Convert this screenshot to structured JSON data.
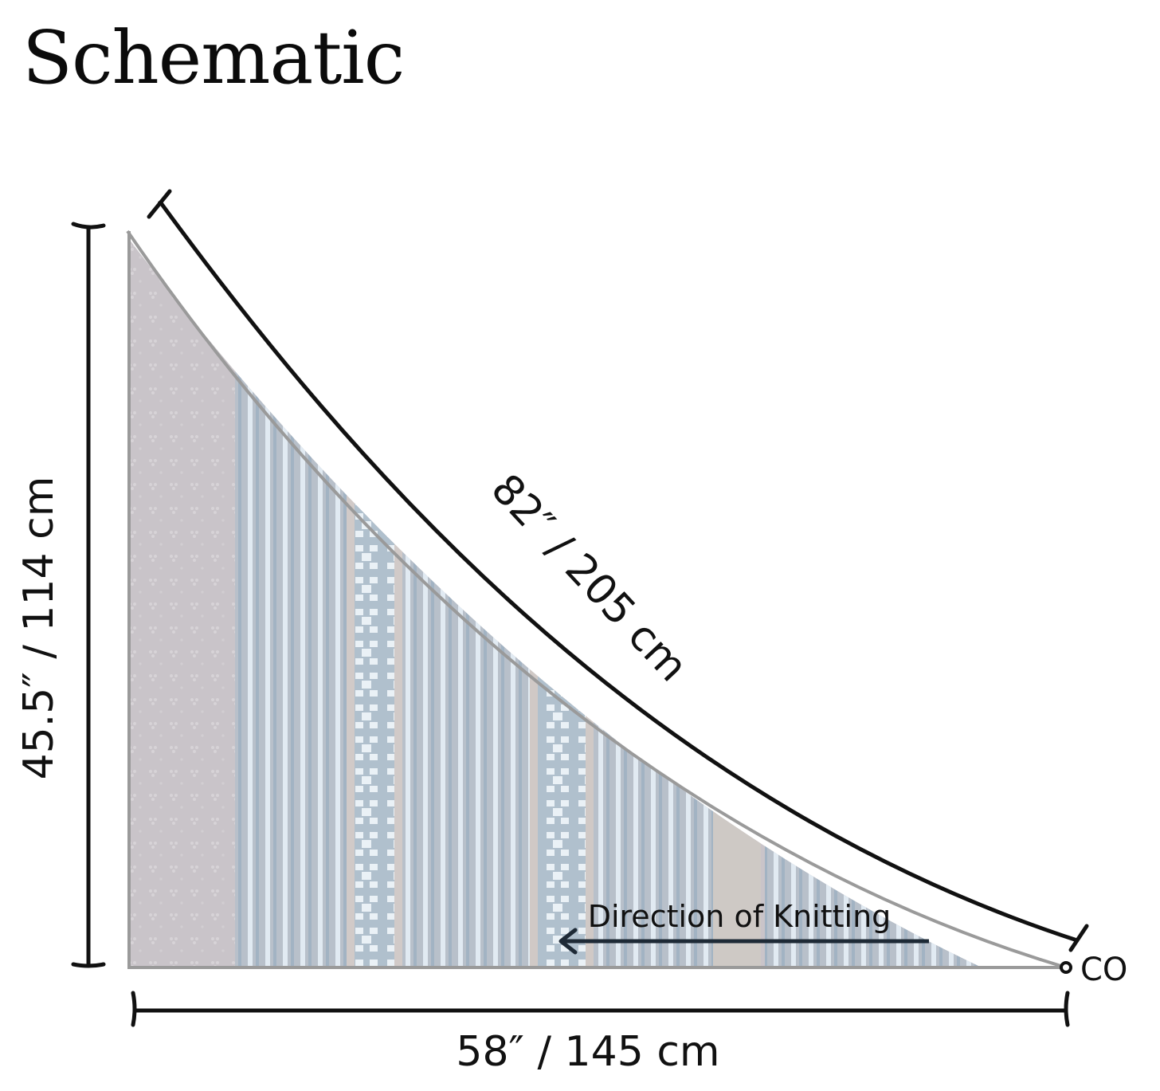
{
  "title": "Schematic",
  "dimensions": {
    "height": "45.5″ / 114 cm",
    "hypotenuse": "82″ / 205 cm",
    "width": "58″ / 145 cm"
  },
  "annotations": {
    "direction": "Direction of Knitting",
    "cast_on": "CO"
  },
  "colors": {
    "outline": "#9a9a9a",
    "dimension_line": "#111111",
    "fabric_base": "#bdb8bd",
    "fabric_stripe": "#93a9bd",
    "fabric_light": "#e6eef4"
  }
}
